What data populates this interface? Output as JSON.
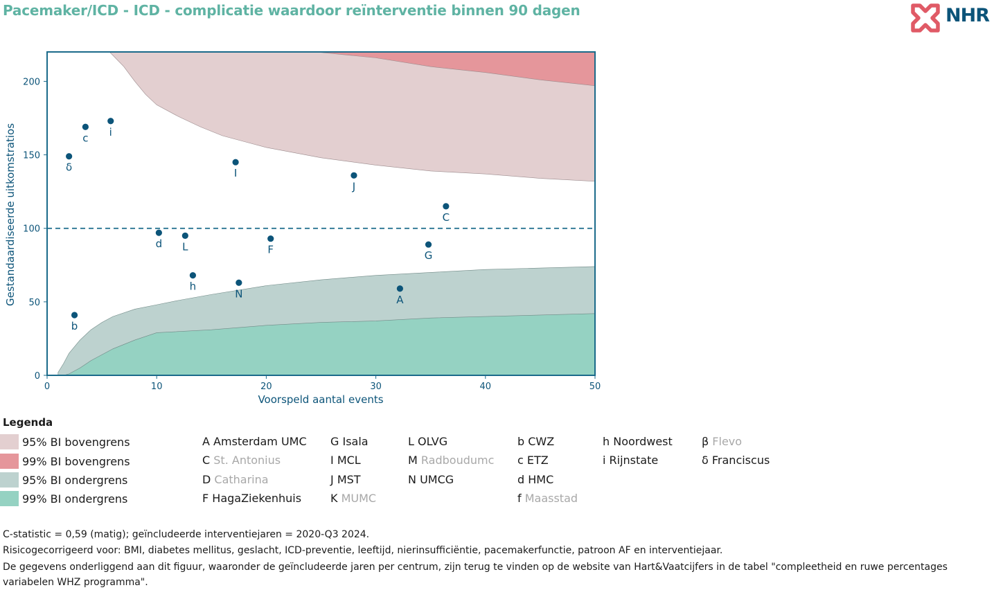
{
  "title": "Pacemaker/ICD - ICD - complicatie waardoor reïnterventie binnen 90 dagen",
  "logo": {
    "text": "NHR",
    "icon": "heart-cross-logo-icon",
    "colors": {
      "mark": "#e05a66",
      "text": "#0c5479"
    }
  },
  "colors": {
    "title": "#5fb3a3",
    "frame": "#1a6a8a",
    "point": "#0c5479",
    "upper95": "#e3cfd0",
    "upper99": "#e5969b",
    "lower95": "#bdd2cf",
    "lower99": "#95d2c2",
    "reference_line": "#1a6a8a"
  },
  "chart_data": {
    "type": "scatter",
    "xlabel": "Voorspeld aantal events",
    "ylabel": "Gestandaardiseerde uitkomstratios",
    "xlim": [
      0,
      50
    ],
    "ylim": [
      0,
      220
    ],
    "xticks": [
      0,
      10,
      20,
      30,
      40,
      50
    ],
    "yticks": [
      0,
      50,
      100,
      150,
      200
    ],
    "grid": false,
    "reference_line": 100,
    "points": [
      {
        "label": "δ",
        "x": 2.0,
        "y": 149
      },
      {
        "label": "b",
        "x": 2.5,
        "y": 41
      },
      {
        "label": "c",
        "x": 3.5,
        "y": 169
      },
      {
        "label": "i",
        "x": 5.8,
        "y": 173
      },
      {
        "label": "d",
        "x": 10.2,
        "y": 97
      },
      {
        "label": "L",
        "x": 12.6,
        "y": 95
      },
      {
        "label": "h",
        "x": 13.3,
        "y": 68
      },
      {
        "label": "I",
        "x": 17.2,
        "y": 145
      },
      {
        "label": "N",
        "x": 17.5,
        "y": 63
      },
      {
        "label": "F",
        "x": 20.4,
        "y": 93
      },
      {
        "label": "J",
        "x": 28.0,
        "y": 136
      },
      {
        "label": "A",
        "x": 32.2,
        "y": 59
      },
      {
        "label": "G",
        "x": 34.8,
        "y": 89
      },
      {
        "label": "C",
        "x": 36.4,
        "y": 115
      }
    ],
    "bands": {
      "upper95": [
        [
          5.7,
          220
        ],
        [
          7,
          210
        ],
        [
          8,
          200
        ],
        [
          9,
          191
        ],
        [
          10,
          184
        ],
        [
          12,
          176
        ],
        [
          14,
          169
        ],
        [
          16,
          163
        ],
        [
          18,
          159
        ],
        [
          20,
          155
        ],
        [
          25,
          148
        ],
        [
          30,
          143
        ],
        [
          35,
          139
        ],
        [
          40,
          137
        ],
        [
          45,
          134
        ],
        [
          50,
          132
        ]
      ],
      "upper99": [
        [
          24.5,
          220
        ],
        [
          30,
          216
        ],
        [
          35,
          210
        ],
        [
          40,
          206
        ],
        [
          45,
          201
        ],
        [
          50,
          197
        ]
      ],
      "lower95": [
        [
          1,
          2
        ],
        [
          1.5,
          8
        ],
        [
          2,
          15
        ],
        [
          3,
          24
        ],
        [
          4,
          31
        ],
        [
          5,
          36
        ],
        [
          6,
          40
        ],
        [
          8,
          45
        ],
        [
          10,
          48
        ],
        [
          12,
          51
        ],
        [
          15,
          55
        ],
        [
          20,
          61
        ],
        [
          25,
          65
        ],
        [
          30,
          68
        ],
        [
          35,
          70
        ],
        [
          40,
          72
        ],
        [
          45,
          73
        ],
        [
          50,
          74
        ]
      ],
      "lower99": [
        [
          1.5,
          0
        ],
        [
          2,
          1
        ],
        [
          3,
          5
        ],
        [
          4,
          10
        ],
        [
          5,
          14
        ],
        [
          6,
          18
        ],
        [
          8,
          24
        ],
        [
          10,
          29
        ],
        [
          15,
          31
        ],
        [
          20,
          34
        ],
        [
          25,
          36
        ],
        [
          30,
          37
        ],
        [
          35,
          39
        ],
        [
          40,
          40
        ],
        [
          45,
          41
        ],
        [
          50,
          42
        ]
      ]
    }
  },
  "legend": {
    "title": "Legenda",
    "bands": [
      {
        "label": "95% BI bovengrens",
        "color": "#e3cfd0"
      },
      {
        "label": "99% BI bovengrens",
        "color": "#e5969b"
      },
      {
        "label": "95% BI ondergrens",
        "color": "#bdd2cf"
      },
      {
        "label": "99% BI ondergrens",
        "color": "#95d2c2"
      }
    ],
    "columns": [
      [
        {
          "code": "A",
          "name": "Amsterdam UMC",
          "muted": false
        },
        {
          "code": "C",
          "name": "St. Antonius",
          "muted": true
        },
        {
          "code": "D",
          "name": "Catharina",
          "muted": true
        },
        {
          "code": "F",
          "name": "HagaZiekenhuis",
          "muted": false
        }
      ],
      [
        {
          "code": "G",
          "name": "Isala",
          "muted": false
        },
        {
          "code": "I",
          "name": "MCL",
          "muted": false
        },
        {
          "code": "J",
          "name": "MST",
          "muted": false
        },
        {
          "code": "K",
          "name": "MUMC",
          "muted": true
        }
      ],
      [
        {
          "code": "L",
          "name": "OLVG",
          "muted": false
        },
        {
          "code": "M",
          "name": "Radboudumc",
          "muted": true
        },
        {
          "code": "N",
          "name": "UMCG",
          "muted": false
        }
      ],
      [
        {
          "code": "b",
          "name": "CWZ",
          "muted": false
        },
        {
          "code": "c",
          "name": "ETZ",
          "muted": false
        },
        {
          "code": "d",
          "name": "HMC",
          "muted": false
        },
        {
          "code": "f",
          "name": "Maasstad",
          "muted": true
        }
      ],
      [
        {
          "code": "h",
          "name": "Noordwest",
          "muted": false
        },
        {
          "code": "i",
          "name": "Rijnstate",
          "muted": false
        }
      ],
      [
        {
          "code": "β",
          "name": "Flevo",
          "muted": true
        },
        {
          "code": "δ",
          "name": "Franciscus",
          "muted": false
        }
      ]
    ]
  },
  "footnotes": [
    "C-statistic =  0,59 (matig); geïncludeerde interventiejaren = 2020-Q3 2024.",
    "Risicogecorrigeerd voor: BMI, diabetes mellitus, geslacht, ICD-preventie, leeftijd, nierinsufficiëntie, pacemakerfunctie, patroon AF en interventiejaar.",
    "De gegevens onderliggend aan dit figuur, waaronder de geïncludeerde jaren per centrum, zijn terug te vinden op de website van Hart&Vaatcijfers in de tabel \"compleetheid en ruwe percentages variabelen WHZ programma\"."
  ]
}
